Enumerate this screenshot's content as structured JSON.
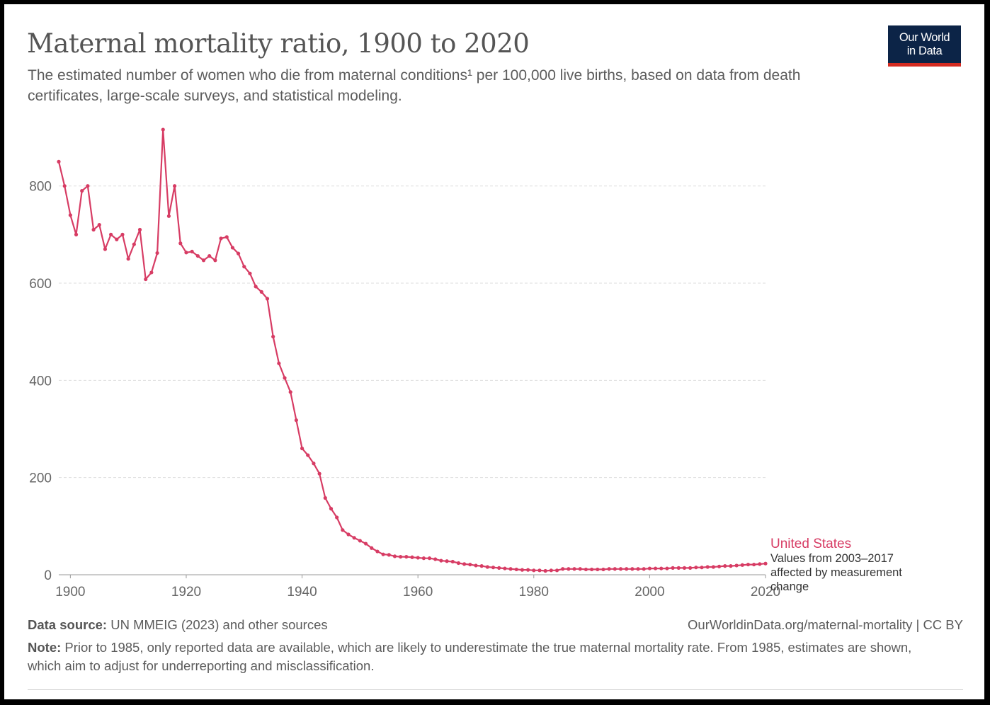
{
  "header": {
    "title": "Maternal mortality ratio, 1900 to 2020",
    "subtitle": "The estimated number of women who die from maternal conditions¹ per 100,000 live births, based on data from death certificates, large-scale surveys, and statistical modeling.",
    "logo_line1": "Our World",
    "logo_line2": "in Data"
  },
  "colors": {
    "series": "#d73c64",
    "grid": "#dddddd",
    "axis": "#666666",
    "logo_bg": "#0c2447",
    "logo_accent": "#d42b21"
  },
  "chart_data": {
    "type": "line",
    "title": "Maternal mortality ratio, 1900 to 2020",
    "xlabel": "",
    "ylabel": "",
    "xlim": [
      1898,
      2020
    ],
    "ylim": [
      0,
      900
    ],
    "grid": "horizontal dashed",
    "y_ticks": [
      0,
      200,
      400,
      600,
      800
    ],
    "x_ticks": [
      1900,
      1920,
      1940,
      1960,
      1980,
      2000,
      2020
    ],
    "markers": true,
    "series": [
      {
        "name": "United States",
        "annotation": "Values from 2003–2017 affected by measurement change",
        "points": [
          [
            1898,
            850
          ],
          [
            1899,
            800
          ],
          [
            1900,
            740
          ],
          [
            1901,
            700
          ],
          [
            1902,
            790
          ],
          [
            1903,
            800
          ],
          [
            1904,
            710
          ],
          [
            1905,
            720
          ],
          [
            1906,
            670
          ],
          [
            1907,
            700
          ],
          [
            1908,
            690
          ],
          [
            1909,
            700
          ],
          [
            1910,
            650
          ],
          [
            1911,
            680
          ],
          [
            1912,
            710
          ],
          [
            1913,
            608
          ],
          [
            1914,
            622
          ],
          [
            1915,
            662
          ],
          [
            1916,
            916
          ],
          [
            1917,
            738
          ],
          [
            1918,
            800
          ],
          [
            1919,
            682
          ],
          [
            1920,
            663
          ],
          [
            1921,
            665
          ],
          [
            1922,
            656
          ],
          [
            1923,
            647
          ],
          [
            1924,
            656
          ],
          [
            1925,
            647
          ],
          [
            1926,
            692
          ],
          [
            1927,
            695
          ],
          [
            1928,
            673
          ],
          [
            1929,
            661
          ],
          [
            1930,
            634
          ],
          [
            1931,
            620
          ],
          [
            1932,
            593
          ],
          [
            1933,
            582
          ],
          [
            1934,
            568
          ],
          [
            1935,
            490
          ],
          [
            1936,
            435
          ],
          [
            1937,
            405
          ],
          [
            1938,
            376
          ],
          [
            1939,
            318
          ],
          [
            1940,
            260
          ],
          [
            1941,
            246
          ],
          [
            1942,
            229
          ],
          [
            1943,
            208
          ],
          [
            1944,
            158
          ],
          [
            1945,
            136
          ],
          [
            1946,
            118
          ],
          [
            1947,
            92
          ],
          [
            1948,
            83
          ],
          [
            1949,
            76
          ],
          [
            1950,
            70
          ],
          [
            1951,
            64
          ],
          [
            1952,
            55
          ],
          [
            1953,
            48
          ],
          [
            1954,
            42
          ],
          [
            1955,
            41
          ],
          [
            1956,
            38
          ],
          [
            1957,
            37
          ],
          [
            1958,
            37
          ],
          [
            1959,
            36
          ],
          [
            1960,
            35
          ],
          [
            1961,
            34
          ],
          [
            1962,
            34
          ],
          [
            1963,
            32
          ],
          [
            1964,
            29
          ],
          [
            1965,
            28
          ],
          [
            1966,
            27
          ],
          [
            1967,
            24
          ],
          [
            1968,
            22
          ],
          [
            1969,
            21
          ],
          [
            1970,
            19
          ],
          [
            1971,
            18
          ],
          [
            1972,
            16
          ],
          [
            1973,
            15
          ],
          [
            1974,
            14
          ],
          [
            1975,
            13
          ],
          [
            1976,
            12
          ],
          [
            1977,
            11
          ],
          [
            1978,
            10
          ],
          [
            1979,
            10
          ],
          [
            1980,
            9
          ],
          [
            1981,
            9
          ],
          [
            1982,
            8
          ],
          [
            1983,
            9
          ],
          [
            1984,
            9
          ],
          [
            1985,
            12
          ],
          [
            1986,
            12
          ],
          [
            1987,
            12
          ],
          [
            1988,
            12
          ],
          [
            1989,
            11
          ],
          [
            1990,
            11
          ],
          [
            1991,
            11
          ],
          [
            1992,
            11
          ],
          [
            1993,
            12
          ],
          [
            1994,
            12
          ],
          [
            1995,
            12
          ],
          [
            1996,
            12
          ],
          [
            1997,
            12
          ],
          [
            1998,
            12
          ],
          [
            1999,
            12
          ],
          [
            2000,
            13
          ],
          [
            2001,
            13
          ],
          [
            2002,
            13
          ],
          [
            2003,
            13
          ],
          [
            2004,
            14
          ],
          [
            2005,
            14
          ],
          [
            2006,
            14
          ],
          [
            2007,
            14
          ],
          [
            2008,
            15
          ],
          [
            2009,
            15
          ],
          [
            2010,
            16
          ],
          [
            2011,
            16
          ],
          [
            2012,
            17
          ],
          [
            2013,
            18
          ],
          [
            2014,
            18
          ],
          [
            2015,
            19
          ],
          [
            2016,
            20
          ],
          [
            2017,
            21
          ],
          [
            2018,
            21
          ],
          [
            2019,
            22
          ],
          [
            2020,
            23
          ]
        ]
      }
    ]
  },
  "labels": {
    "series_name": "United States",
    "annotation_lines": [
      "Values from 2003–2017",
      "affected by measurement",
      "change"
    ]
  },
  "footer": {
    "source_label": "Data source:",
    "source_text": "UN MMEIG (2023) and other sources",
    "url": "OurWorldinData.org/maternal-mortality | CC BY",
    "note_label": "Note:",
    "note_text": "Prior to 1985, only reported data are available, which are likely to underestimate the true maternal mortality rate. From 1985, estimates are shown, which aim to adjust for underreporting and misclassification."
  }
}
